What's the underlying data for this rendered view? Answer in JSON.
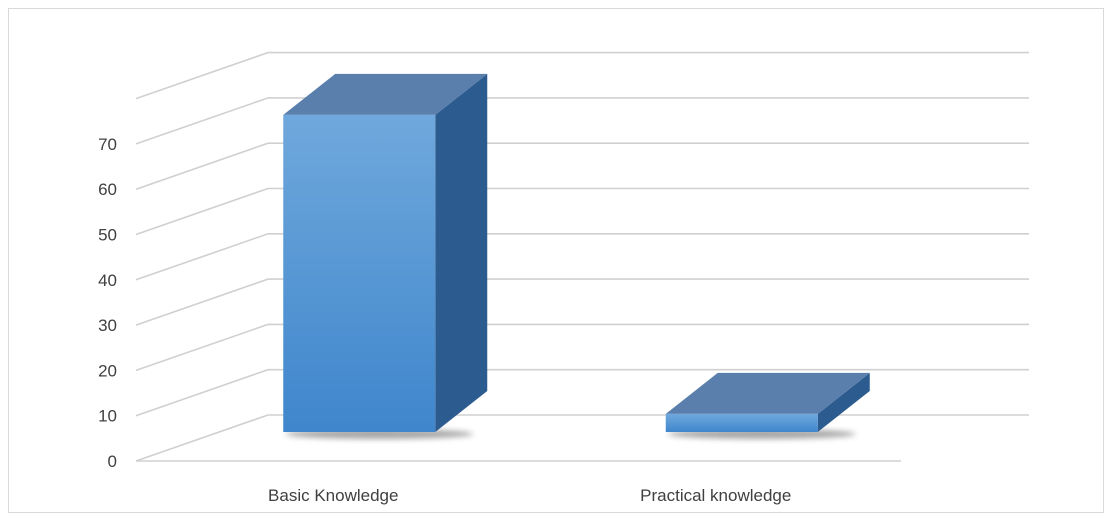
{
  "chart_data": {
    "type": "bar",
    "title": "",
    "xlabel": "",
    "ylabel": "",
    "categories": [
      "Basic Knowledge",
      "Practical knowledge"
    ],
    "values": [
      70,
      4
    ],
    "ylim": [
      0,
      70
    ],
    "y_ticks": [
      "0",
      "10",
      "20",
      "30",
      "40",
      "50",
      "60",
      "70"
    ],
    "grid": true,
    "legend": "none",
    "style": "3d-column",
    "colors": {
      "front_top": "#6fa8dc",
      "front_bottom": "#3f86cc",
      "side": "#2c5c8f",
      "top": "#5b7fad",
      "grid": "#d0d0d0"
    }
  }
}
